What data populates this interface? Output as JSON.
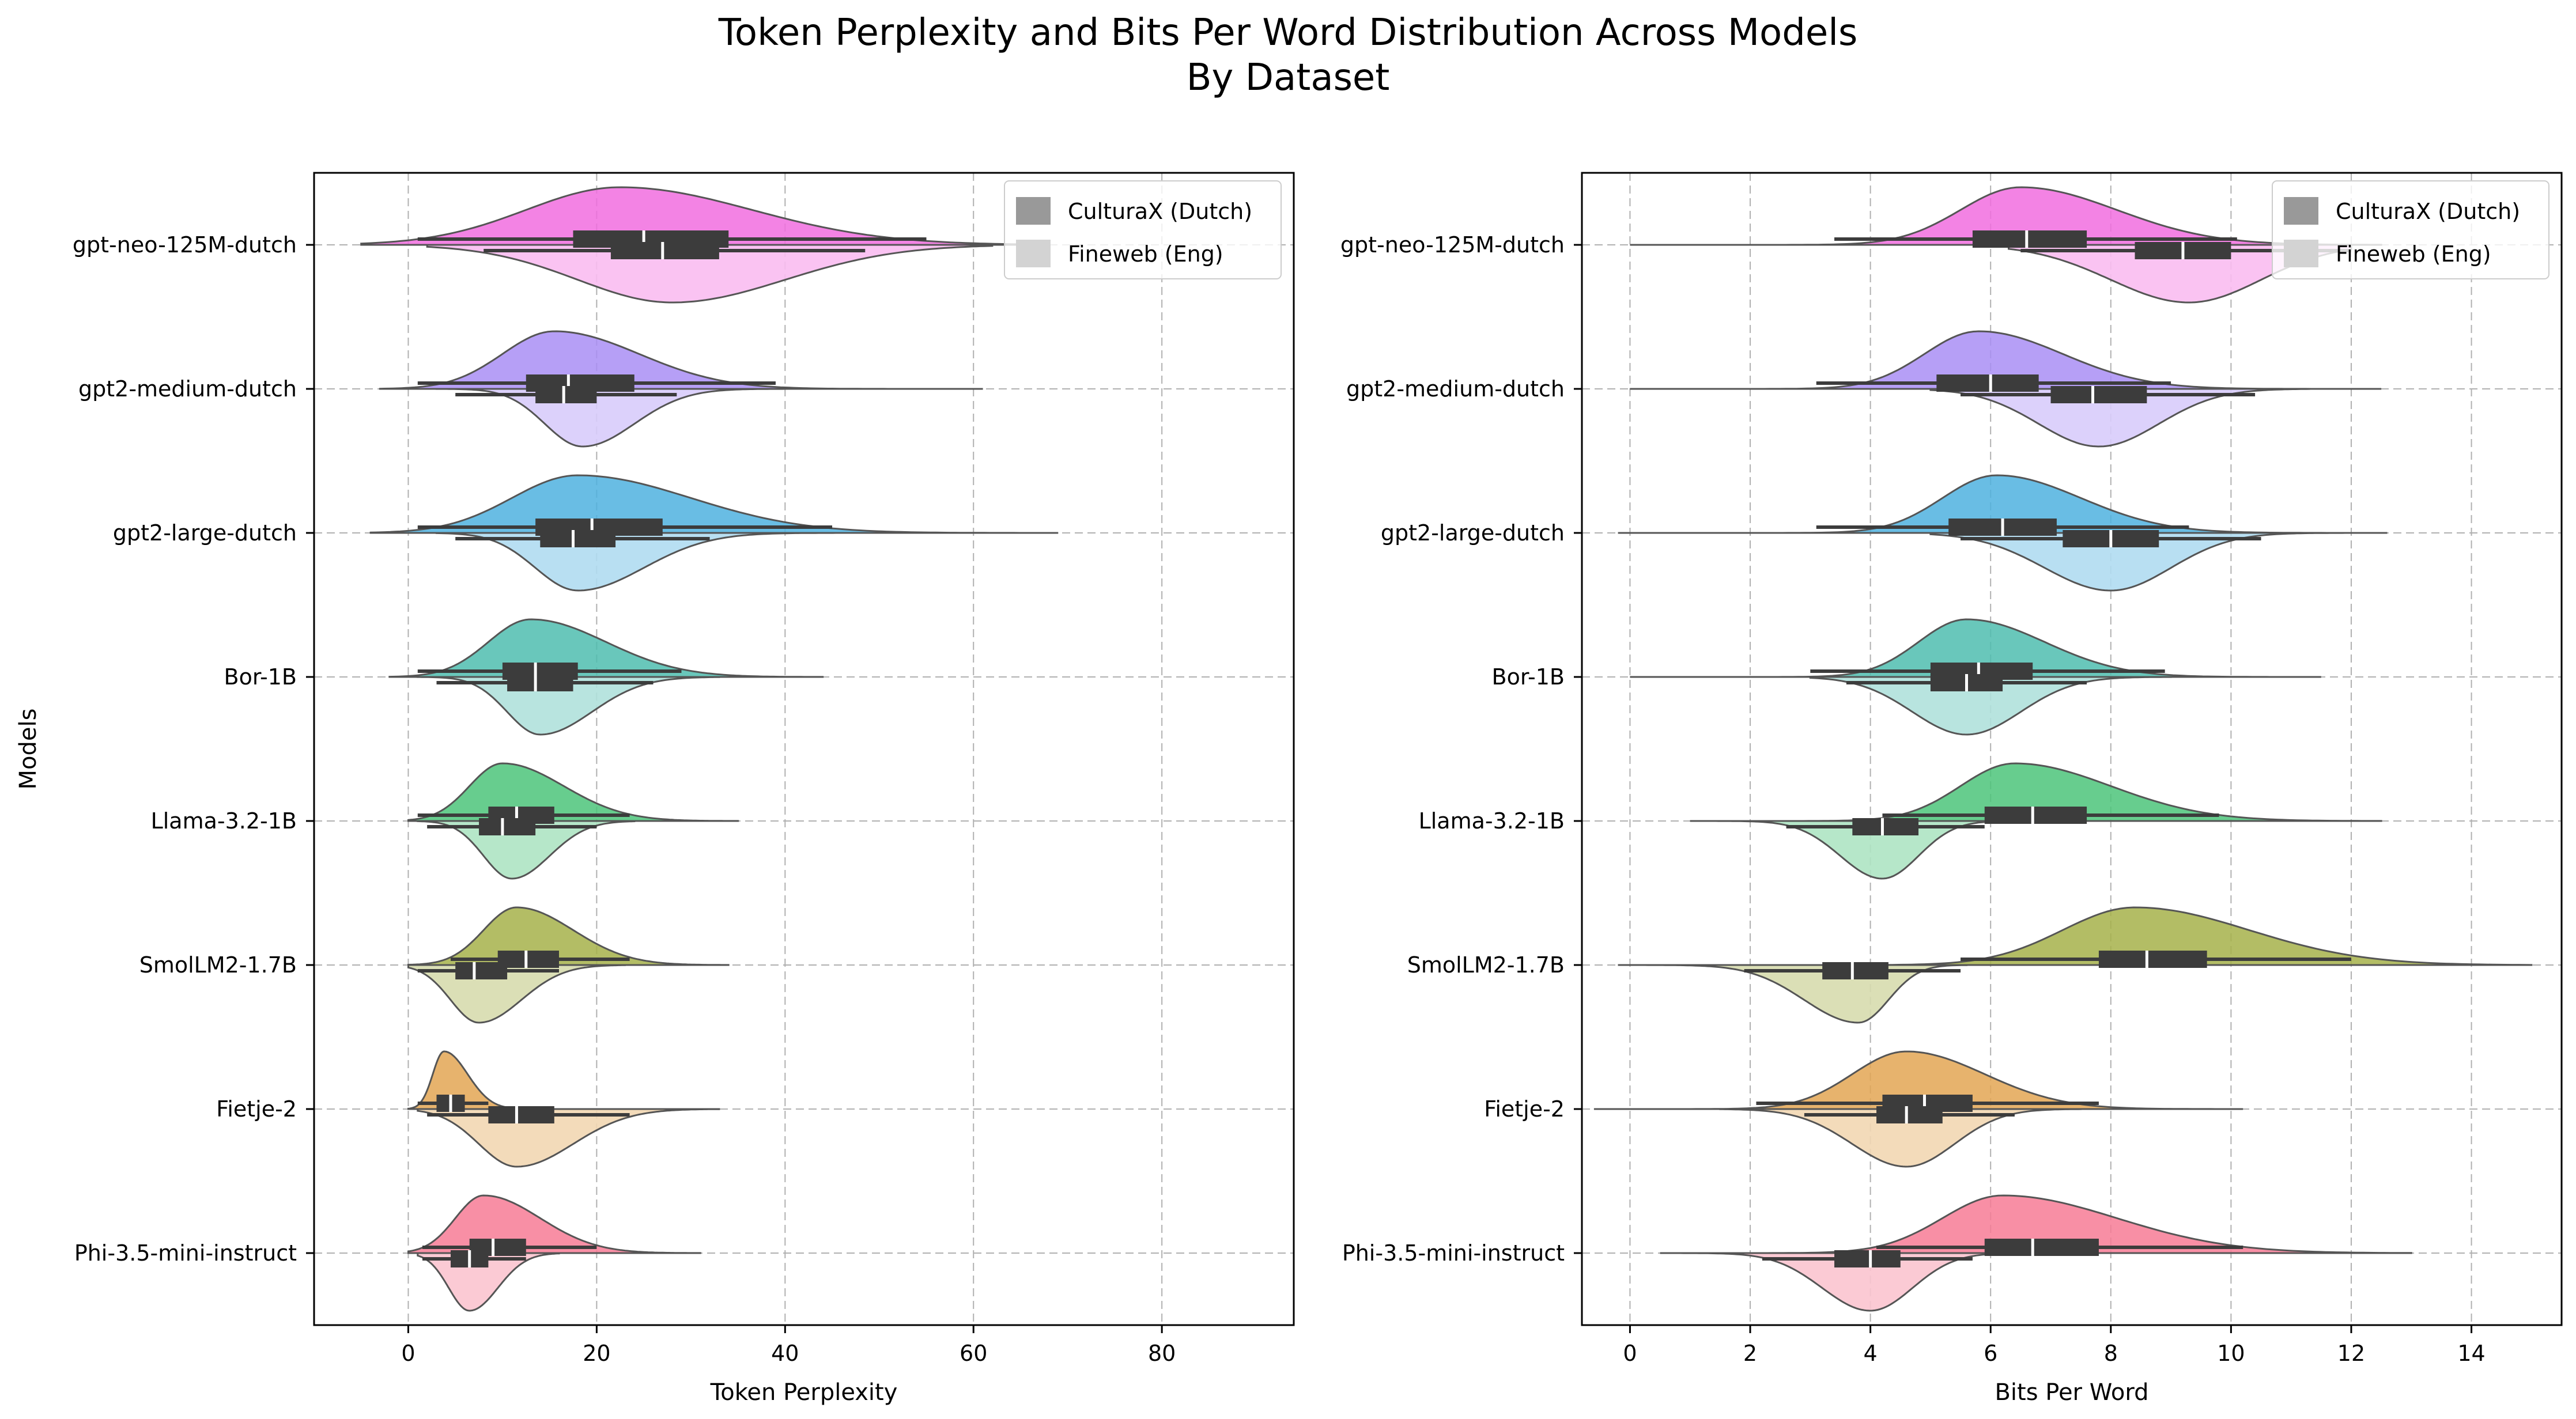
{
  "title": [
    "Token Perplexity and Bits Per Word Distribution Across Models",
    "By Dataset"
  ],
  "colors": {
    "gpt-neo-125M-dutch": "#f16ddf",
    "gpt2-medium-dutch": "#a98ef5",
    "gpt2-large-dutch": "#4fb2df",
    "Bor-1B": "#4fbdaf",
    "Llama-3.2-1B": "#4cc47a",
    "SmolLM2-1.7B": "#a6b24a",
    "Fietje-2": "#e3a654",
    "Phi-3.5-mini-instruct": "#f77b95",
    "box": "#3c3c3c",
    "grid": "#b0b0b0"
  },
  "chart_data": [
    {
      "type": "violin",
      "xlabel": "Token Perplexity",
      "ylabel": "Models",
      "xlim": [
        -10,
        94
      ],
      "xticks": [
        0,
        20,
        40,
        60,
        80
      ],
      "grid": true,
      "legend": {
        "placement": "top-right",
        "entries": [
          "CulturaX (Dutch)",
          "Fineweb (Eng)"
        ]
      },
      "categories": [
        "gpt-neo-125M-dutch",
        "gpt2-medium-dutch",
        "gpt2-large-dutch",
        "Bor-1B",
        "Llama-3.2-1B",
        "SmolLM2-1.7B",
        "Fietje-2",
        "Phi-3.5-mini-instruct"
      ],
      "series": [
        {
          "name": "CulturaX (Dutch)",
          "violins": [
            {
              "peak": 22.5,
              "w": [
                10,
                14
              ],
              "range": [
                -5,
                68
              ],
              "q1": 17.5,
              "median": 25.0,
              "q3": 34.0,
              "whisker": [
                1,
                55
              ]
            },
            {
              "peak": 15.5,
              "w": [
                5.5,
                9
              ],
              "range": [
                -3,
                61
              ],
              "q1": 12.5,
              "median": 17.0,
              "q3": 24.0,
              "whisker": [
                1,
                39
              ]
            },
            {
              "peak": 18.0,
              "w": [
                7,
                12
              ],
              "range": [
                -4,
                69
              ],
              "q1": 13.5,
              "median": 19.5,
              "q3": 27.0,
              "whisker": [
                1,
                45
              ]
            },
            {
              "peak": 13.0,
              "w": [
                4.5,
                8
              ],
              "range": [
                -2,
                44
              ],
              "q1": 10.0,
              "median": 13.5,
              "q3": 18.0,
              "whisker": [
                1,
                29
              ]
            },
            {
              "peak": 10.0,
              "w": [
                3.5,
                6.5
              ],
              "range": [
                0,
                35
              ],
              "q1": 8.5,
              "median": 11.5,
              "q3": 15.5,
              "whisker": [
                1,
                23.5
              ]
            },
            {
              "peak": 11.5,
              "w": [
                3.5,
                6
              ],
              "range": [
                0,
                34
              ],
              "q1": 9.5,
              "median": 12.5,
              "q3": 16.0,
              "whisker": [
                4.5,
                23.5
              ]
            },
            {
              "peak": 3.8,
              "w": [
                1.2,
                2.5
              ],
              "range": [
                0,
                12
              ],
              "q1": 3.0,
              "median": 4.5,
              "q3": 6.0,
              "whisker": [
                1,
                8.5
              ]
            },
            {
              "peak": 8.0,
              "w": [
                3,
                6
              ],
              "range": [
                0,
                31
              ],
              "q1": 6.5,
              "median": 9.0,
              "q3": 12.5,
              "whisker": [
                1.5,
                20
              ]
            }
          ]
        },
        {
          "name": "Fineweb (Eng)",
          "violins": [
            {
              "peak": 28.0,
              "w": [
                10,
                12
              ],
              "range": [
                2,
                62
              ],
              "q1": 21.5,
              "median": 27.0,
              "q3": 33.0,
              "whisker": [
                8,
                48.5
              ]
            },
            {
              "peak": 18.5,
              "w": [
                4,
                5.5
              ],
              "range": [
                3,
                40
              ],
              "q1": 13.5,
              "median": 16.5,
              "q3": 20.0,
              "whisker": [
                5,
                28.5
              ]
            },
            {
              "peak": 18.0,
              "w": [
                4.5,
                7
              ],
              "range": [
                3,
                46
              ],
              "q1": 14.0,
              "median": 17.5,
              "q3": 22.0,
              "whisker": [
                5,
                32
              ]
            },
            {
              "peak": 14.0,
              "w": [
                3.5,
                5.5
              ],
              "range": [
                1,
                33
              ],
              "q1": 10.5,
              "median": 13.5,
              "q3": 17.5,
              "whisker": [
                3,
                26
              ]
            },
            {
              "peak": 11.0,
              "w": [
                3,
                4
              ],
              "range": [
                1,
                24
              ],
              "q1": 7.5,
              "median": 10.0,
              "q3": 13.5,
              "whisker": [
                2,
                20
              ]
            },
            {
              "peak": 7.5,
              "w": [
                3,
                4.5
              ],
              "range": [
                0,
                23
              ],
              "q1": 5.0,
              "median": 7.0,
              "q3": 10.5,
              "whisker": [
                1,
                16
              ]
            },
            {
              "peak": 11.5,
              "w": [
                4,
                6
              ],
              "range": [
                1,
                33
              ],
              "q1": 8.5,
              "median": 11.5,
              "q3": 15.5,
              "whisker": [
                2,
                23.5
              ]
            },
            {
              "peak": 6.5,
              "w": [
                2.2,
                3
              ],
              "range": [
                1,
                16
              ],
              "q1": 4.5,
              "median": 6.5,
              "q3": 8.5,
              "whisker": [
                1.5,
                12.5
              ]
            }
          ]
        }
      ]
    },
    {
      "type": "violin",
      "xlabel": "Bits Per Word",
      "ylabel": "",
      "xlim": [
        -0.8,
        15.5
      ],
      "xticks": [
        0,
        2,
        4,
        6,
        8,
        10,
        12,
        14
      ],
      "grid": true,
      "legend": {
        "placement": "top-right",
        "entries": [
          "CulturaX (Dutch)",
          "Fineweb (Eng)"
        ]
      },
      "categories": [
        "gpt-neo-125M-dutch",
        "gpt2-medium-dutch",
        "gpt2-large-dutch",
        "Bor-1B",
        "Llama-3.2-1B",
        "SmolLM2-1.7B",
        "Fietje-2",
        "Phi-3.5-mini-instruct"
      ],
      "series": [
        {
          "name": "CulturaX (Dutch)",
          "violins": [
            {
              "peak": 6.5,
              "w": [
                1.0,
                1.6
              ],
              "range": [
                0,
                12.5
              ],
              "q1": 5.7,
              "median": 6.6,
              "q3": 7.6,
              "whisker": [
                3.4,
                10.1
              ]
            },
            {
              "peak": 5.8,
              "w": [
                0.9,
                1.4
              ],
              "range": [
                0,
                12.5
              ],
              "q1": 5.1,
              "median": 6.0,
              "q3": 6.8,
              "whisker": [
                3.1,
                9.0
              ]
            },
            {
              "peak": 6.1,
              "w": [
                0.9,
                1.4
              ],
              "range": [
                -0.2,
                12.6
              ],
              "q1": 5.3,
              "median": 6.2,
              "q3": 7.1,
              "whisker": [
                3.1,
                9.3
              ]
            },
            {
              "peak": 5.6,
              "w": [
                0.8,
                1.3
              ],
              "range": [
                0,
                11.5
              ],
              "q1": 5.0,
              "median": 5.8,
              "q3": 6.7,
              "whisker": [
                3.0,
                8.9
              ]
            },
            {
              "peak": 6.4,
              "w": [
                0.9,
                1.6
              ],
              "range": [
                1,
                12.5
              ],
              "q1": 5.9,
              "median": 6.7,
              "q3": 7.6,
              "whisker": [
                4.2,
                9.8
              ]
            },
            {
              "peak": 8.4,
              "w": [
                1.2,
                1.9
              ],
              "range": [
                -0.2,
                15
              ],
              "q1": 7.8,
              "median": 8.6,
              "q3": 9.6,
              "whisker": [
                5.5,
                12.0
              ]
            },
            {
              "peak": 4.6,
              "w": [
                0.9,
                1.3
              ],
              "range": [
                -0.6,
                10.2
              ],
              "q1": 4.2,
              "median": 4.9,
              "q3": 5.7,
              "whisker": [
                2.1,
                7.8
              ]
            },
            {
              "peak": 6.2,
              "w": [
                1.0,
                1.9
              ],
              "range": [
                0.5,
                13
              ],
              "q1": 5.9,
              "median": 6.7,
              "q3": 7.8,
              "whisker": [
                4.1,
                10.2
              ]
            }
          ]
        },
        {
          "name": "Fineweb (Eng)",
          "violins": [
            {
              "peak": 9.3,
              "w": [
                1.3,
                1.2
              ],
              "range": [
                6.3,
                12.0
              ],
              "q1": 8.4,
              "median": 9.2,
              "q3": 10.0,
              "whisker": [
                6.5,
                12.0
              ]
            },
            {
              "peak": 7.8,
              "w": [
                1.0,
                1.0
              ],
              "range": [
                5.0,
                11.3
              ],
              "q1": 7.0,
              "median": 7.7,
              "q3": 8.6,
              "whisker": [
                5.5,
                10.4
              ]
            },
            {
              "peak": 8.0,
              "w": [
                1.1,
                1.0
              ],
              "range": [
                5.0,
                12.0
              ],
              "q1": 7.2,
              "median": 8.0,
              "q3": 8.8,
              "whisker": [
                5.5,
                10.5
              ]
            },
            {
              "peak": 5.6,
              "w": [
                0.9,
                0.9
              ],
              "range": [
                3.0,
                9.0
              ],
              "q1": 5.0,
              "median": 5.6,
              "q3": 6.2,
              "whisker": [
                3.6,
                7.6
              ]
            },
            {
              "peak": 4.2,
              "w": [
                0.7,
                0.6
              ],
              "range": [
                1.0,
                6.5
              ],
              "q1": 3.7,
              "median": 4.2,
              "q3": 4.8,
              "whisker": [
                2.6,
                5.9
              ]
            },
            {
              "peak": 3.8,
              "w": [
                0.9,
                0.5
              ],
              "range": [
                -0.2,
                5.6
              ],
              "q1": 3.2,
              "median": 3.7,
              "q3": 4.3,
              "whisker": [
                1.9,
                5.5
              ]
            },
            {
              "peak": 4.6,
              "w": [
                0.9,
                0.8
              ],
              "range": [
                1.5,
                7.5
              ],
              "q1": 4.1,
              "median": 4.6,
              "q3": 5.2,
              "whisker": [
                2.9,
                6.4
              ]
            },
            {
              "peak": 4.0,
              "w": [
                0.8,
                0.7
              ],
              "range": [
                0.8,
                7.0
              ],
              "q1": 3.4,
              "median": 4.0,
              "q3": 4.5,
              "whisker": [
                2.2,
                5.7
              ]
            }
          ]
        }
      ]
    }
  ]
}
